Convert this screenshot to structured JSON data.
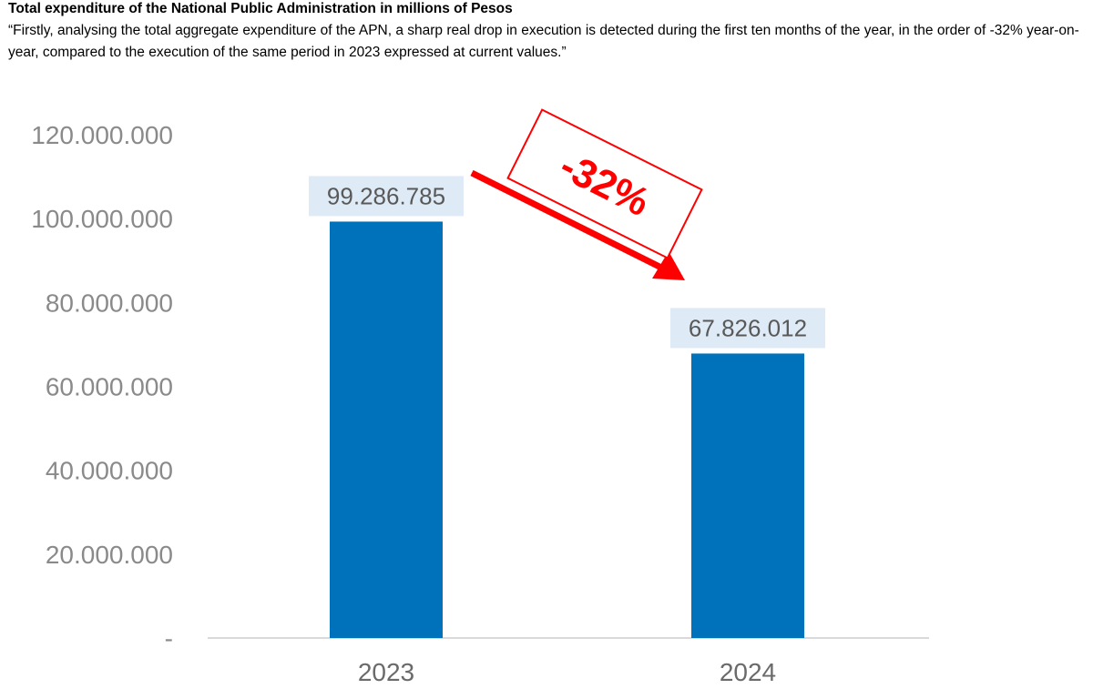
{
  "header": {
    "title": "Total expenditure of the National Public Administration in millions of Pesos",
    "quote": "“Firstly, analysing the total aggregate expenditure of the APN, a sharp real drop in execution is detected during the first ten months of the year, in the order of -32% year-on-year, compared to the execution of the same period in 2023 expressed at current values.”"
  },
  "chart_data": {
    "type": "bar",
    "categories": [
      "2023",
      "2024"
    ],
    "values": [
      99286785,
      67826012
    ],
    "value_labels": [
      "99.286.785",
      "67.826.012"
    ],
    "ylim": [
      0,
      120000000
    ],
    "yticks": [
      0,
      20000000,
      40000000,
      60000000,
      80000000,
      100000000,
      120000000
    ],
    "ytick_labels": [
      "-",
      "20.000.000",
      "40.000.000",
      "60.000.000",
      "80.000.000",
      "100.000.000",
      "120.000.000"
    ],
    "xlabel": "",
    "ylabel": "",
    "grid": false,
    "legend": "none",
    "annotation": {
      "text": "-32%",
      "arrow": "down-right from 2023 bar to 2024 bar"
    }
  },
  "colors": {
    "bar": "#0072bc",
    "label_box": "#deebf7",
    "annotation": "#ff0000",
    "axis": "#d9d9d9"
  }
}
